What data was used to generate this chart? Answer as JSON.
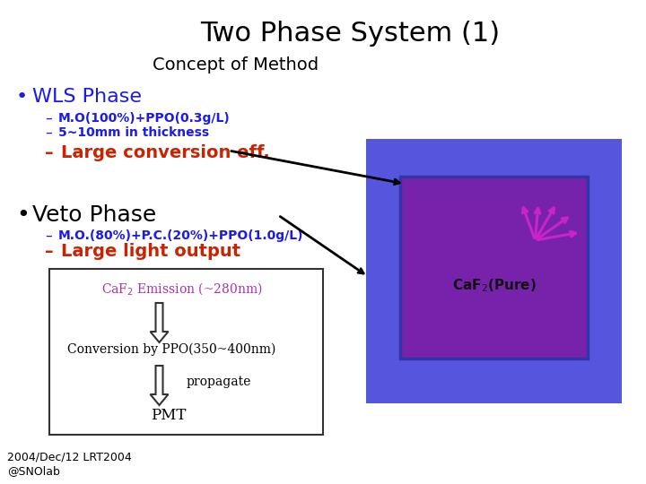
{
  "title": "Two Phase System (1)",
  "subtitle": "Concept of Method",
  "bg_color": "#ffffff",
  "title_color": "#000000",
  "subtitle_color": "#000000",
  "bullet_blue": "#1a1aee",
  "bullet_black": "#000000",
  "red_color": "#cc2200",
  "wls_phase_text": "WLS Phase",
  "wls_sub1": "M.O(100%)+PPO(0.3g/L)",
  "wls_sub2": "5~10mm in thickness",
  "wls_sub3": "Large conversion eff.",
  "veto_phase_text": "Veto Phase",
  "veto_sub1": "M.O.(80%)+P.C.(20%)+PPO(1.0g/L)",
  "veto_sub2": "Large light output",
  "box_outer_color": "#5555dd",
  "box_inner_color": "#7722aa",
  "box_inner_border": "#3333aa",
  "caf2_text_color": "#111111",
  "flow_title_color": "#aa33aa",
  "flow_line1": "Conversion by PPO(350~400nm)",
  "flow_line2": "propagate",
  "flow_line3": "PMT",
  "footer": "2004/Dec/12 LRT2004\n@SNOlab",
  "arrow_black": "#000000",
  "arrow_blue": "#2222bb",
  "arrow_pink": "#cc22cc"
}
